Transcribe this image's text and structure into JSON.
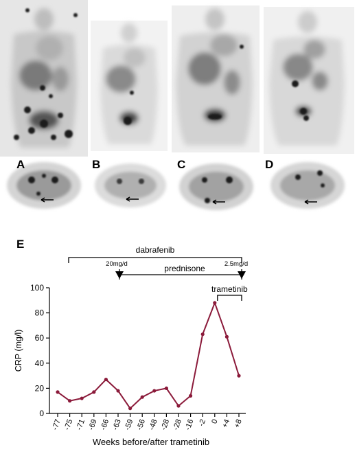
{
  "figure": {
    "panel_labels": [
      "A",
      "B",
      "C",
      "D"
    ],
    "chart_panel_label": "E",
    "colors": {
      "series": "#8b1a3a",
      "axis": "#000000",
      "scan_dark": "#1a1a1a",
      "scan_background": "#ffffff"
    }
  },
  "chart_data": {
    "type": "line",
    "xlabel": "Weeks before/after trametinib",
    "ylabel": "CRP (mg/l)",
    "ylim": [
      0,
      100
    ],
    "yticks": [
      0,
      20,
      40,
      60,
      80,
      100
    ],
    "categories": [
      "-77",
      "-75",
      "-71",
      "-69",
      "-66",
      "-63",
      "-59",
      "-56",
      "-48",
      "-28",
      "-28",
      "-16",
      "-2",
      "0",
      "+4",
      "+8"
    ],
    "series": [
      {
        "values": [
          17,
          10,
          12,
          17,
          27,
          18,
          4,
          13,
          18,
          20,
          6,
          14,
          63,
          88,
          61,
          30
        ]
      }
    ],
    "grid": false,
    "legend": "none",
    "annotations": {
      "dabrafenib": {
        "label": "dabrafenib",
        "from_index": 0,
        "to_index": 15
      },
      "prednisone": {
        "label": "prednisone",
        "from_index": 5,
        "to_index": 15,
        "start_dose": "20mg/d",
        "end_dose": "2.5mg/d"
      },
      "trametinib": {
        "label": "trametinib",
        "from_index": 13,
        "to_index": 15
      }
    }
  }
}
